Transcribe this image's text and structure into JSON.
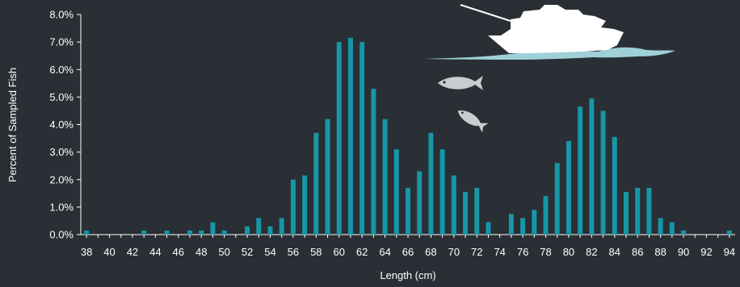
{
  "chart_data": {
    "type": "bar",
    "title": "",
    "xlabel": "Length (cm)",
    "ylabel": "Percent of Sampled Fish",
    "ylim": [
      0,
      8
    ],
    "yticks": [
      "0.0%",
      "1.0%",
      "2.0%",
      "3.0%",
      "4.0%",
      "5.0%",
      "6.0%",
      "7.0%",
      "8.0%"
    ],
    "x": [
      38,
      39,
      40,
      41,
      42,
      43,
      44,
      45,
      46,
      47,
      48,
      49,
      50,
      51,
      52,
      53,
      54,
      55,
      56,
      57,
      58,
      59,
      60,
      61,
      62,
      63,
      64,
      65,
      66,
      67,
      68,
      69,
      70,
      71,
      72,
      73,
      74,
      75,
      76,
      77,
      78,
      79,
      80,
      81,
      82,
      83,
      84,
      85,
      86,
      87,
      88,
      89,
      90,
      91,
      92,
      93,
      94
    ],
    "xtick_labels": [
      "38",
      "40",
      "42",
      "44",
      "46",
      "48",
      "50",
      "52",
      "54",
      "56",
      "58",
      "60",
      "62",
      "64",
      "66",
      "68",
      "70",
      "72",
      "74",
      "76",
      "78",
      "80",
      "82",
      "84",
      "86",
      "88",
      "90",
      "92",
      "94"
    ],
    "values": [
      0.15,
      0,
      0,
      0,
      0,
      0.15,
      0,
      0.15,
      0,
      0.15,
      0.15,
      0.45,
      0.15,
      0,
      0.3,
      0.6,
      0.3,
      0.6,
      2.0,
      2.15,
      3.7,
      4.2,
      7.0,
      7.15,
      7.0,
      5.3,
      4.2,
      3.1,
      1.7,
      2.3,
      3.7,
      3.1,
      2.15,
      1.55,
      1.7,
      0.45,
      0,
      0.75,
      0.6,
      0.9,
      1.4,
      2.6,
      3.4,
      4.65,
      4.95,
      4.5,
      3.55,
      1.55,
      1.7,
      1.7,
      0.6,
      0.45,
      0.15,
      0,
      0,
      0,
      0.15
    ],
    "grid": false,
    "legend": "none",
    "colors": {
      "bar": "#1597a8",
      "background": "#2a2f35",
      "text": "#ffffff",
      "water": "#9fd0d8",
      "boat": "#ffffff",
      "fish": "#c9ccd0"
    }
  },
  "illustration": {
    "boat_icon": "fishing-boat-icon",
    "fish_icon": "fish-icon"
  }
}
